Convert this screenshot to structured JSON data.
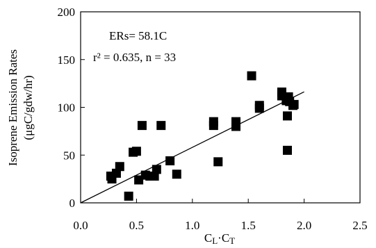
{
  "chart_data": {
    "type": "scatter",
    "title": "",
    "xlabel": "C_L·C_T",
    "ylabel_line1": "Isoprene Emission Rates",
    "ylabel_line2": "(μgC/gdw/hr)",
    "xlim": [
      0.0,
      2.5
    ],
    "ylim": [
      0,
      200
    ],
    "x_ticks": [
      "0.0",
      "0.5",
      "1.0",
      "1.5",
      "2.0",
      "2.5"
    ],
    "y_ticks": [
      "0",
      "50",
      "100",
      "150",
      "200"
    ],
    "grid": false,
    "marker": "square",
    "marker_color": "#000000",
    "annotations": {
      "equation": "ERs= 58.1C",
      "stats": "r² = 0.635, n = 33"
    },
    "fit_line": {
      "x": [
        0.0,
        2.0
      ],
      "y": [
        0.0,
        116.2
      ]
    },
    "points": [
      {
        "x": 0.27,
        "y": 28
      },
      {
        "x": 0.28,
        "y": 25
      },
      {
        "x": 0.32,
        "y": 31
      },
      {
        "x": 0.35,
        "y": 38
      },
      {
        "x": 0.43,
        "y": 7
      },
      {
        "x": 0.47,
        "y": 53
      },
      {
        "x": 0.5,
        "y": 54
      },
      {
        "x": 0.52,
        "y": 24
      },
      {
        "x": 0.55,
        "y": 81
      },
      {
        "x": 0.58,
        "y": 29
      },
      {
        "x": 0.62,
        "y": 28
      },
      {
        "x": 0.66,
        "y": 28
      },
      {
        "x": 0.68,
        "y": 35
      },
      {
        "x": 0.72,
        "y": 81
      },
      {
        "x": 0.8,
        "y": 44
      },
      {
        "x": 0.86,
        "y": 30
      },
      {
        "x": 1.19,
        "y": 85
      },
      {
        "x": 1.19,
        "y": 81
      },
      {
        "x": 1.23,
        "y": 43
      },
      {
        "x": 1.39,
        "y": 85
      },
      {
        "x": 1.39,
        "y": 80
      },
      {
        "x": 1.53,
        "y": 133
      },
      {
        "x": 1.6,
        "y": 102
      },
      {
        "x": 1.6,
        "y": 99
      },
      {
        "x": 1.8,
        "y": 116
      },
      {
        "x": 1.8,
        "y": 112
      },
      {
        "x": 1.84,
        "y": 107
      },
      {
        "x": 1.85,
        "y": 55
      },
      {
        "x": 1.85,
        "y": 91
      },
      {
        "x": 1.86,
        "y": 111
      },
      {
        "x": 1.9,
        "y": 102
      },
      {
        "x": 1.91,
        "y": 103
      },
      {
        "x": 1.87,
        "y": 106
      }
    ]
  }
}
